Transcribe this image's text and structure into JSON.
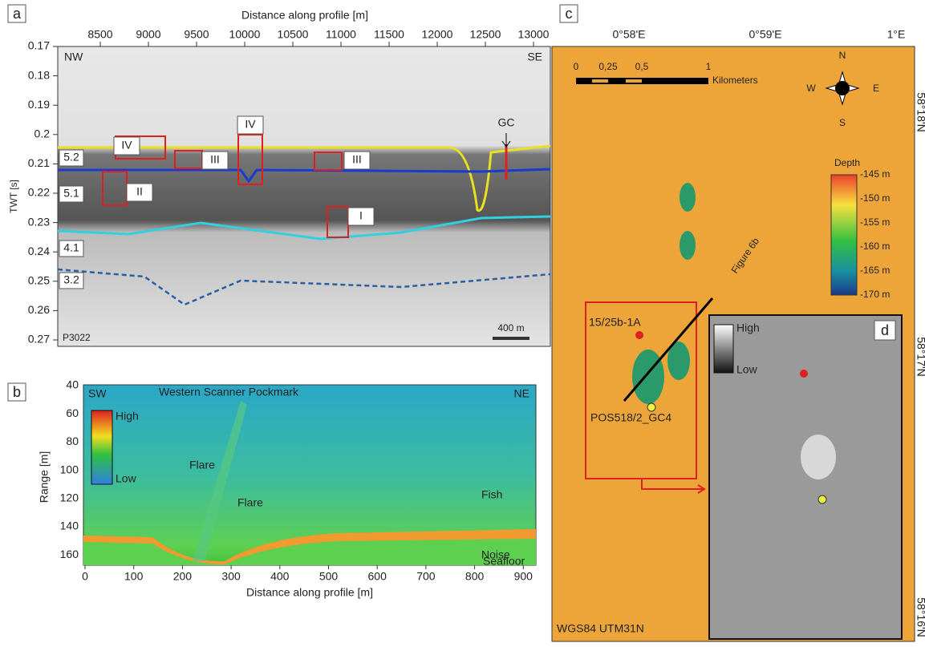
{
  "panel_a": {
    "label": "a",
    "x_title": "Distance along profile [m]",
    "y_title": "TWT [s]",
    "xticks": [
      8500,
      9000,
      9500,
      10000,
      10500,
      11000,
      11500,
      12000,
      12500,
      13000
    ],
    "yticks": [
      0.17,
      0.18,
      0.19,
      0.2,
      0.21,
      0.22,
      0.23,
      0.24,
      0.25,
      0.26,
      0.27
    ],
    "corner_left": "NW",
    "corner_right": "SE",
    "units": [
      "5.2",
      "5.1",
      "4.1",
      "3.2"
    ],
    "boxes": [
      "IV",
      "IV",
      "III",
      "III",
      "II",
      "I"
    ],
    "core": "GC",
    "profile": "P3022",
    "scale": "400 m"
  },
  "panel_b": {
    "label": "b",
    "title": "Western Scanner Pockmark",
    "x_title": "Distance along profile [m]",
    "y_title": "Range [m]",
    "xticks": [
      0,
      100,
      200,
      300,
      400,
      500,
      600,
      700,
      800,
      900
    ],
    "yticks": [
      40,
      60,
      80,
      100,
      120,
      140,
      160
    ],
    "corner_left": "SW",
    "corner_right": "NE",
    "legend_high": "High",
    "legend_low": "Low",
    "features": [
      "Flare",
      "Flare",
      "Fish",
      "Noise",
      "Seafloor"
    ]
  },
  "panel_c": {
    "label": "c",
    "lon_ticks": [
      "0°58'E",
      "0°59'E",
      "1°E"
    ],
    "lat_ticks": [
      "58°18'N",
      "58°17'N",
      "58°16'N"
    ],
    "scale_ticks": [
      "0",
      "0,25",
      "0,5",
      "1"
    ],
    "scale_unit": "Kilometers",
    "compass": [
      "N",
      "E",
      "S",
      "W"
    ],
    "depth_title": "Depth",
    "depth_ticks": [
      "-145 m",
      "-150 m",
      "-155 m",
      "-160 m",
      "-165 m",
      "-170 m"
    ],
    "figure_ref": "Figure 6b",
    "well": "15/25b-1A",
    "core": "POS518/2_GC4",
    "projection": "WGS84 UTM31N"
  },
  "panel_d": {
    "label": "d",
    "legend_high": "High",
    "legend_low": "Low"
  }
}
